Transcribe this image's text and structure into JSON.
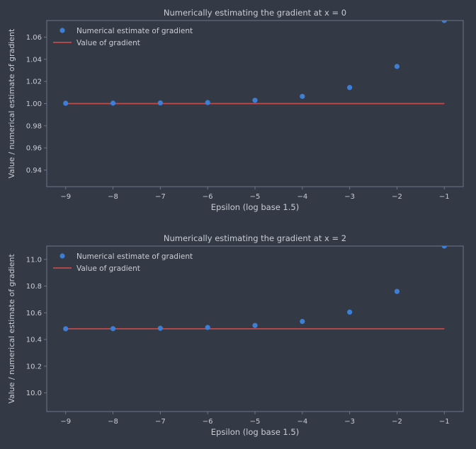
{
  "theme": {
    "background": "#333a45",
    "axes_face": "#333a45",
    "spine_color": "#6b7586",
    "text_color": "#c9cdd3",
    "estimate_color": "#3d7fd6",
    "gradient_color": "#c24a4a"
  },
  "chart_data": [
    {
      "type": "scatter",
      "title": "Numerically estimating the gradient at x = 0",
      "xlabel": "Epsilon (log base 1.5)",
      "ylabel": "Value / numerical estimate of gradient",
      "xlim": [
        -9.4,
        -0.6
      ],
      "ylim": [
        0.925,
        1.075
      ],
      "xticks": [
        -9,
        -8,
        -7,
        -6,
        -5,
        -4,
        -3,
        -2,
        -1
      ],
      "xtick_labels": [
        "−9",
        "−8",
        "−7",
        "−6",
        "−5",
        "−4",
        "−3",
        "−2",
        "−1"
      ],
      "yticks": [
        0.94,
        0.96,
        0.98,
        1.0,
        1.02,
        1.04,
        1.06
      ],
      "ytick_labels": [
        "0.94",
        "0.96",
        "0.98",
        "1.00",
        "1.02",
        "1.04",
        "1.06"
      ],
      "legend_location": "upper-left",
      "grid": false,
      "series": [
        {
          "name": "Numerical estimate of gradient",
          "kind": "scatter",
          "x": [
            -9,
            -8,
            -7,
            -6,
            -5,
            -4,
            -3,
            -2,
            -1
          ],
          "y": [
            1.0003,
            1.0004,
            1.0006,
            1.0009,
            1.003,
            1.0065,
            1.0145,
            1.0335,
            1.075
          ]
        },
        {
          "name": "Value of gradient",
          "kind": "line",
          "x": [
            -9,
            -1
          ],
          "y": [
            1.0,
            1.0
          ]
        }
      ]
    },
    {
      "type": "scatter",
      "title": "Numerically estimating the gradient at x = 2",
      "xlabel": "Epsilon (log base 1.5)",
      "ylabel": "Value / numerical estimate of gradient",
      "xlim": [
        -9.4,
        -0.6
      ],
      "ylim": [
        9.86,
        11.1
      ],
      "xticks": [
        -9,
        -8,
        -7,
        -6,
        -5,
        -4,
        -3,
        -2,
        -1
      ],
      "xtick_labels": [
        "−9",
        "−8",
        "−7",
        "−6",
        "−5",
        "−4",
        "−3",
        "−2",
        "−1"
      ],
      "yticks": [
        10.0,
        10.2,
        10.4,
        10.6,
        10.8,
        11.0
      ],
      "ytick_labels": [
        "10.0",
        "10.2",
        "10.4",
        "10.6",
        "10.8",
        "11.0"
      ],
      "legend_location": "upper-left",
      "grid": false,
      "series": [
        {
          "name": "Numerical estimate of gradient",
          "kind": "scatter",
          "x": [
            -9,
            -8,
            -7,
            -6,
            -5,
            -4,
            -3,
            -2,
            -1
          ],
          "y": [
            10.48,
            10.481,
            10.484,
            10.49,
            10.505,
            10.535,
            10.605,
            10.76,
            11.1
          ]
        },
        {
          "name": "Value of gradient",
          "kind": "line",
          "x": [
            -9,
            -1
          ],
          "y": [
            10.48,
            10.48
          ]
        }
      ]
    }
  ]
}
